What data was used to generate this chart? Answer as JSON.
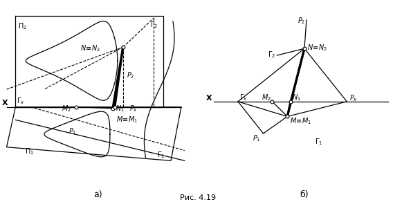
{
  "fig_width": 5.68,
  "fig_height": 2.95,
  "dpi": 100,
  "caption": "Рис. 4.19",
  "label_a": "а)",
  "label_b": "б)"
}
